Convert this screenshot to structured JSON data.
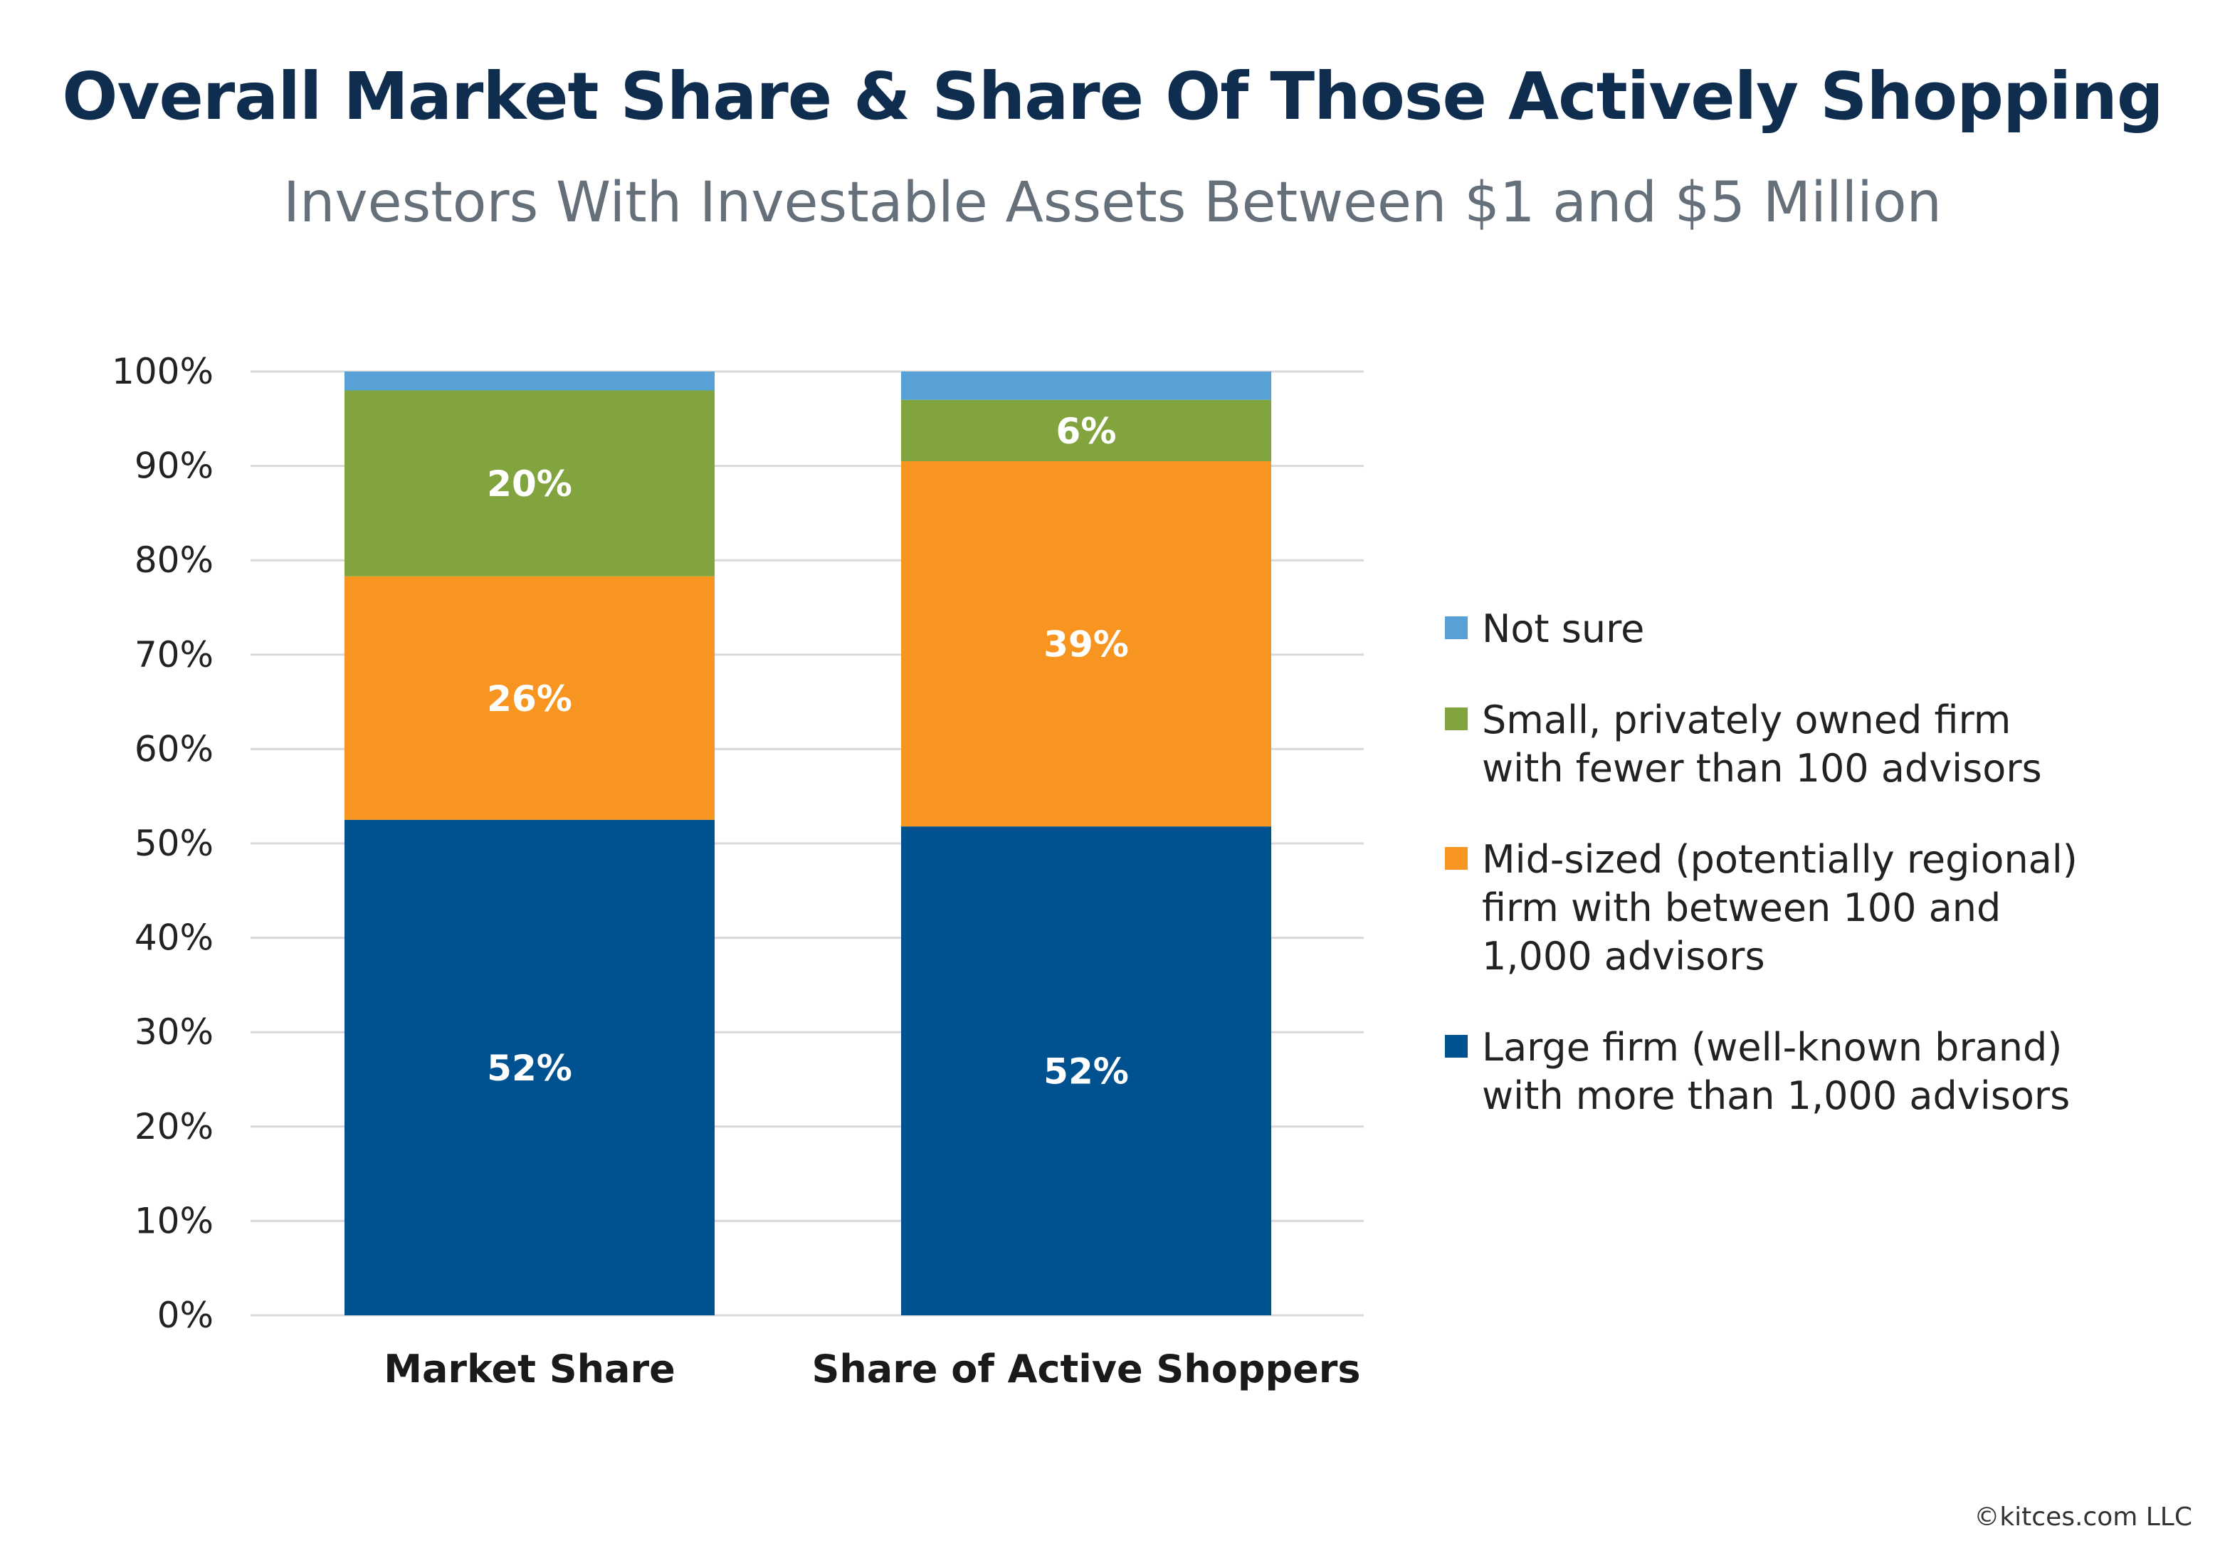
{
  "title": "Overall Market Share & Share Of Those Actively Shopping",
  "subtitle": "Investors With Investable Assets Between $1 and $5 Million",
  "copyright": "©kitces.com LLC",
  "chart_data": {
    "type": "bar",
    "stacked": true,
    "categories": [
      "Market Share",
      "Share of Active Shoppers"
    ],
    "series": [
      {
        "name": "Large firm (well-known brand)\nwith more than 1,000 advisors",
        "values": [
          52.5,
          51.8
        ],
        "labels": [
          "52%",
          "52%"
        ],
        "color": "#00518f"
      },
      {
        "name": "Mid-sized (potentially regional)\nfirm with between 100 and\n1,000 advisors",
        "values": [
          25.8,
          38.7
        ],
        "labels": [
          "26%",
          "39%"
        ],
        "color": "#f79520"
      },
      {
        "name": "Small, privately owned firm\nwith fewer than 100 advisors",
        "values": [
          19.7,
          6.5
        ],
        "labels": [
          "20%",
          "6%"
        ],
        "color": "#81a43f"
      },
      {
        "name": "Not sure",
        "values": [
          2.0,
          3.0
        ],
        "labels": [
          "",
          ""
        ],
        "color": "#58a1d7"
      }
    ],
    "ylim": [
      0,
      100
    ],
    "yticks": [
      "0%",
      "10%",
      "20%",
      "30%",
      "40%",
      "50%",
      "60%",
      "70%",
      "80%",
      "90%",
      "100%"
    ],
    "grid": true,
    "gridColor": "#d9d9d9",
    "legend_position": "right",
    "legend_order": [
      3,
      2,
      1,
      0
    ]
  }
}
